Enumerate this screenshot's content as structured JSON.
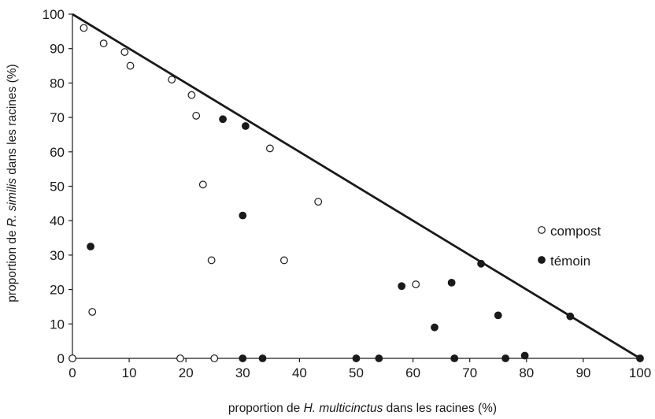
{
  "chart_data": {
    "type": "scatter",
    "xlabel": {
      "prefix": "proportion de ",
      "italic": "H. multicinctus",
      "suffix": " dans les racines (%)"
    },
    "ylabel": {
      "prefix": "proportion de ",
      "italic": "R. similis",
      "suffix": " dans les racines (%)"
    },
    "xlim": [
      0,
      100
    ],
    "ylim": [
      0,
      100
    ],
    "x_ticks": [
      0,
      10,
      20,
      30,
      40,
      50,
      60,
      70,
      80,
      90,
      100
    ],
    "y_ticks": [
      0,
      10,
      20,
      30,
      40,
      50,
      60,
      70,
      80,
      90,
      100
    ],
    "grid": false,
    "legend_position": "right",
    "reference_line": {
      "from": [
        0,
        100
      ],
      "to": [
        100,
        0
      ]
    },
    "series": [
      {
        "name": "compost",
        "marker": "open-circle",
        "color": "#1a1a1a",
        "points": [
          [
            0,
            0
          ],
          [
            2,
            96
          ],
          [
            3.5,
            13.5
          ],
          [
            5.5,
            91.5
          ],
          [
            9.2,
            89
          ],
          [
            10.2,
            85
          ],
          [
            17.5,
            81
          ],
          [
            19,
            0
          ],
          [
            21,
            76.5
          ],
          [
            21.8,
            70.5
          ],
          [
            23,
            50.5
          ],
          [
            24.5,
            28.5
          ],
          [
            25,
            0
          ],
          [
            34.8,
            61
          ],
          [
            37.3,
            28.5
          ],
          [
            43.3,
            45.5
          ],
          [
            60.5,
            21.5
          ]
        ]
      },
      {
        "name": "témoin",
        "marker": "filled-circle",
        "color": "#1a1a1a",
        "points": [
          [
            3.2,
            32.5
          ],
          [
            26.5,
            69.5
          ],
          [
            30,
            41.5
          ],
          [
            30,
            0
          ],
          [
            30.5,
            67.5
          ],
          [
            33.5,
            0
          ],
          [
            50,
            0
          ],
          [
            54,
            0
          ],
          [
            58,
            21
          ],
          [
            63.8,
            9
          ],
          [
            66.8,
            22
          ],
          [
            67.3,
            0
          ],
          [
            72,
            27.5
          ],
          [
            75,
            12.5
          ],
          [
            76.3,
            0
          ],
          [
            79.7,
            0.8
          ],
          [
            87.7,
            12.2
          ],
          [
            100,
            0
          ]
        ]
      }
    ]
  }
}
